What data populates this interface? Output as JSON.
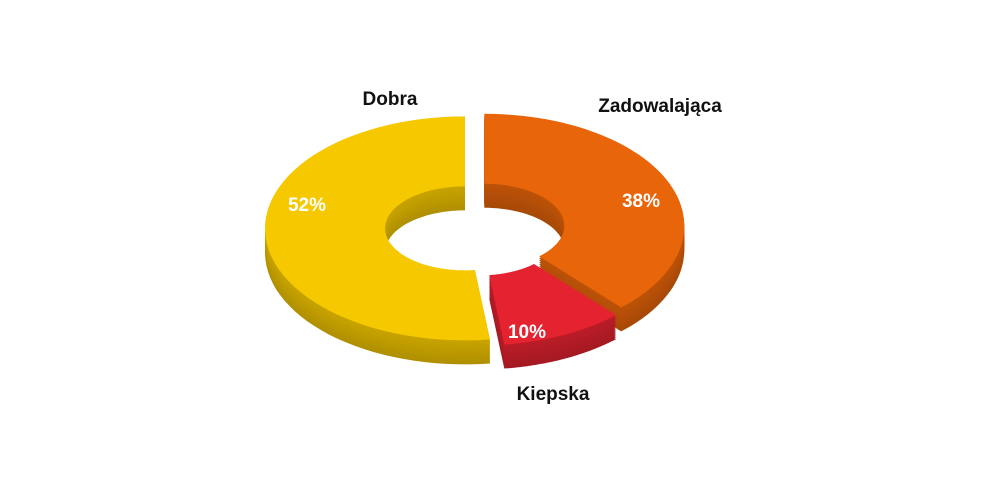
{
  "chart_data": {
    "type": "donut",
    "categories": [
      "Zadowalająca",
      "Kiepska",
      "Dobra"
    ],
    "values": [
      38,
      10,
      52
    ],
    "value_labels": [
      "38%",
      "10%",
      "52%"
    ],
    "colors": [
      "#e8650a",
      "#e52330",
      "#f5c800"
    ]
  }
}
